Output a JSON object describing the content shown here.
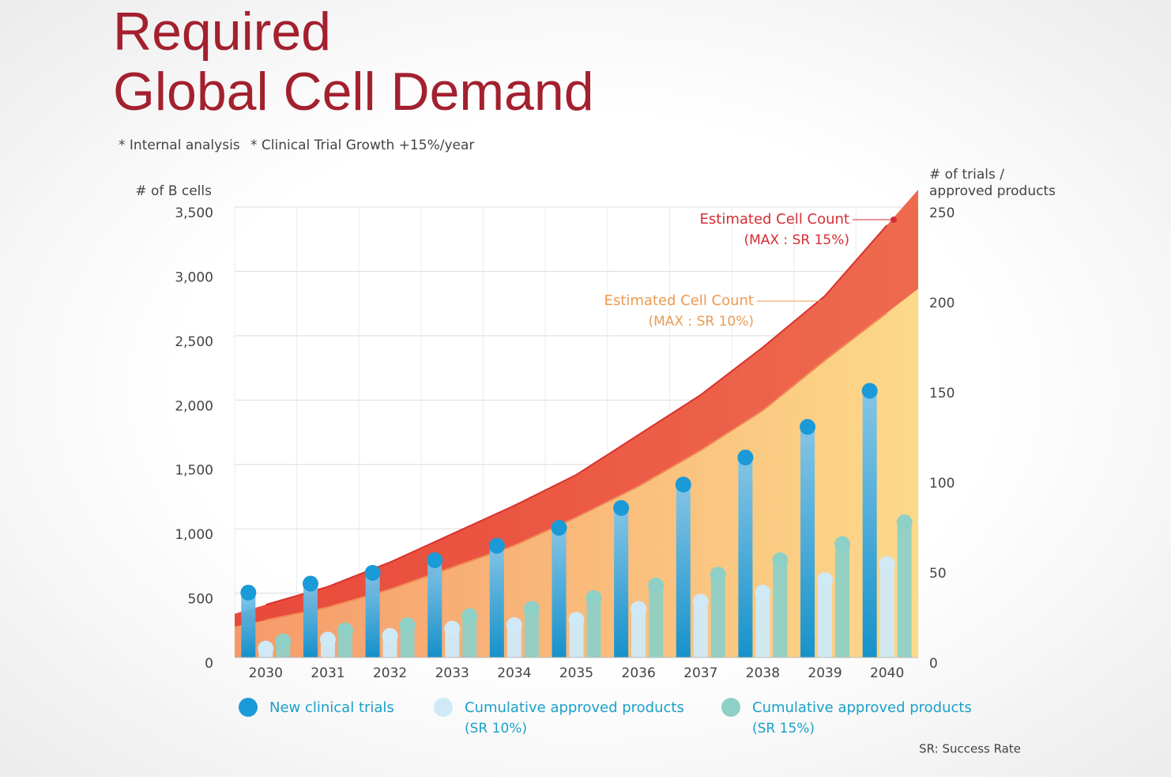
{
  "chart_data": {
    "type": "combo",
    "title": [
      "Required",
      "Global Cell Demand"
    ],
    "notes": [
      "* Internal analysis",
      "* Clinical Trial Growth +15%/year"
    ],
    "ylabel": "# of B cells",
    "y2label": [
      "# of trials /",
      "approved products"
    ],
    "footnote": "SR: Success Rate",
    "categories": [
      "2030",
      "2031",
      "2032",
      "2033",
      "2034",
      "2035",
      "2036",
      "2037",
      "2038",
      "2039",
      "2040"
    ],
    "ylim": [
      0,
      3500
    ],
    "yticks": [
      0,
      500,
      {
        "value": 1000,
        "label": "1,000"
      },
      {
        "value": 1500,
        "label": "1,500"
      },
      {
        "value": 2000,
        "label": "2,000"
      },
      {
        "value": 2500,
        "label": "2,500"
      },
      {
        "value": 3000,
        "label": "3,000"
      },
      {
        "value": 3500,
        "label": "3,500"
      }
    ],
    "y2lim": [
      0,
      250
    ],
    "y2ticks": [
      0,
      50,
      100,
      150,
      200,
      250
    ],
    "grid": true,
    "series": [
      {
        "type": "area",
        "name": "Estimated Cell Count",
        "note": "(MAX : SR 15%)",
        "color": "#e8493a",
        "axis": "y",
        "values": [
          410,
          550,
          740,
          960,
          1180,
          1420,
          1730,
          2040,
          2410,
          2810,
          3360
        ]
      },
      {
        "type": "area",
        "name": "Estimated Cell Count",
        "note": "(MAX : SR 10%)",
        "color": "#f4a259",
        "axis": "y",
        "values": [
          290,
          390,
          530,
          700,
          870,
          1090,
          1330,
          1610,
          1920,
          2310,
          2680
        ]
      },
      {
        "type": "bar",
        "name": "New clinical trials",
        "color": "#1a9ad6",
        "axis": "y2",
        "values": [
          36,
          41,
          47,
          54,
          62,
          72,
          83,
          96,
          111,
          128,
          148
        ]
      },
      {
        "type": "bar",
        "name": "Cumulative approved products",
        "note": "(SR 10%)",
        "color": "#cfe9f7",
        "axis": "y2",
        "values": [
          5,
          10,
          12,
          16,
          18,
          21,
          27,
          31,
          36,
          43,
          52
        ]
      },
      {
        "type": "bar",
        "name": "Cumulative approved products",
        "note": "(SR 15%)",
        "color": "#8fd0c6",
        "axis": "y2",
        "values": [
          9,
          15,
          18,
          23,
          27,
          33,
          40,
          46,
          54,
          63,
          75
        ]
      }
    ]
  }
}
